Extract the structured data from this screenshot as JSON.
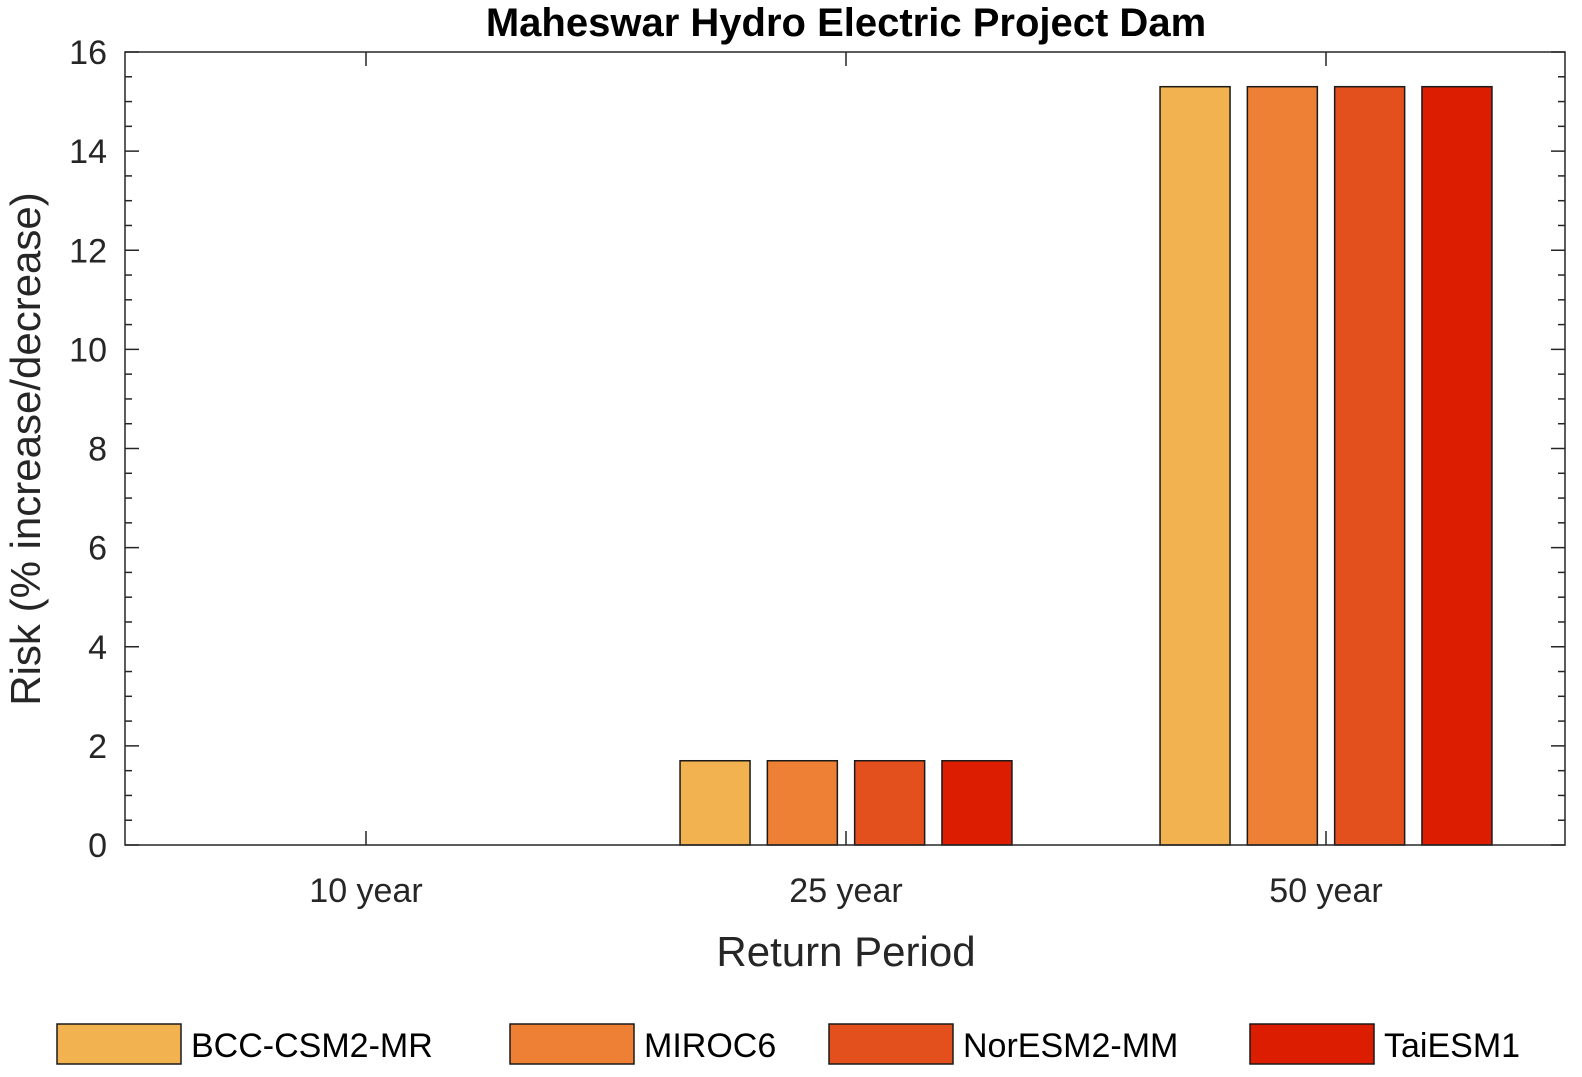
{
  "chart_data": {
    "type": "bar",
    "title": "Maheswar Hydro Electric Project Dam",
    "xlabel": "Return Period",
    "ylabel": "Risk (% increase/decrease)",
    "categories": [
      "10 year",
      "25 year",
      "50 year"
    ],
    "ylim": [
      0,
      16
    ],
    "yticks": [
      0,
      2,
      4,
      6,
      8,
      10,
      12,
      14,
      16
    ],
    "grid": false,
    "legend_position": "bottom",
    "series": [
      {
        "name": "BCC-CSM2-MR",
        "color": "#F2B24F",
        "values": [
          0,
          1.7,
          15.3
        ]
      },
      {
        "name": "MIROC6",
        "color": "#ED8034",
        "values": [
          0,
          1.7,
          15.3
        ]
      },
      {
        "name": "NorESM2-MM",
        "color": "#E3501E",
        "values": [
          0,
          1.7,
          15.3
        ]
      },
      {
        "name": "TaiESM1",
        "color": "#DD1D02",
        "values": [
          0,
          1.7,
          15.3
        ]
      }
    ]
  }
}
